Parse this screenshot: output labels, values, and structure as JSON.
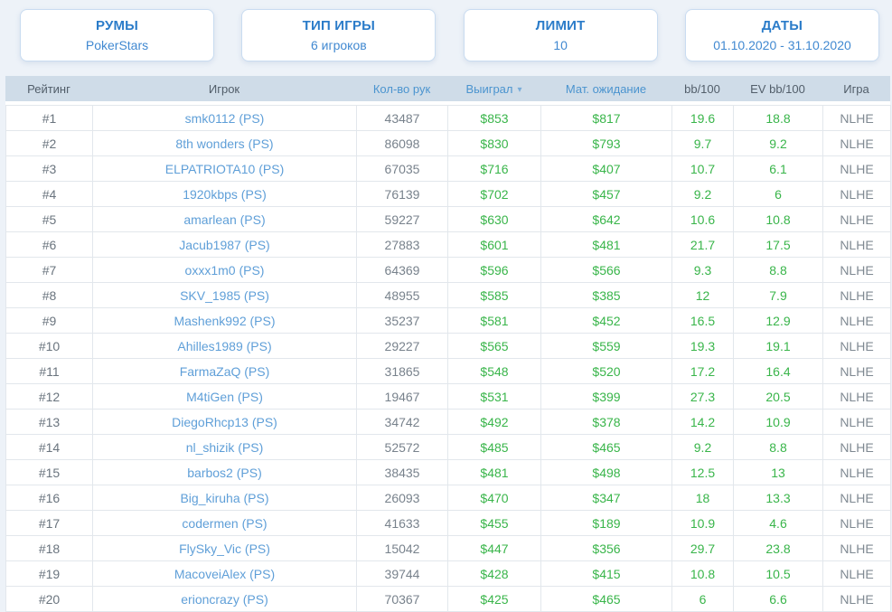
{
  "filters": {
    "rooms": {
      "title": "РУМЫ",
      "value": "PokerStars"
    },
    "game_type": {
      "title": "ТИП ИГРЫ",
      "value": "6 игроков"
    },
    "limit": {
      "title": "ЛИМИТ",
      "value": "10"
    },
    "dates": {
      "title": "ДАТЫ",
      "value": "01.10.2020 - 31.10.2020"
    }
  },
  "table": {
    "columns": [
      {
        "key": "rank",
        "label": "Рейтинг",
        "sortable": false
      },
      {
        "key": "player",
        "label": "Игрок",
        "sortable": false
      },
      {
        "key": "hands",
        "label": "Кол-во рук",
        "sortable": true
      },
      {
        "key": "won",
        "label": "Выиграл",
        "sortable": true,
        "sorted": "desc"
      },
      {
        "key": "ev",
        "label": "Мат. ожидание",
        "sortable": true
      },
      {
        "key": "bb100",
        "label": "bb/100",
        "sortable": false
      },
      {
        "key": "evbb100",
        "label": "EV bb/100",
        "sortable": false
      },
      {
        "key": "game",
        "label": "Игра",
        "sortable": false
      }
    ],
    "sort_icon": "▾",
    "rows": [
      [
        "#1",
        "smk0112 (PS)",
        "43487",
        "$853",
        "$817",
        "19.6",
        "18.8",
        "NLHE"
      ],
      [
        "#2",
        "8th wonders (PS)",
        "86098",
        "$830",
        "$793",
        "9.7",
        "9.2",
        "NLHE"
      ],
      [
        "#3",
        "ELPATRIOTA10 (PS)",
        "67035",
        "$716",
        "$407",
        "10.7",
        "6.1",
        "NLHE"
      ],
      [
        "#4",
        "1920kbps (PS)",
        "76139",
        "$702",
        "$457",
        "9.2",
        "6",
        "NLHE"
      ],
      [
        "#5",
        "amarlean (PS)",
        "59227",
        "$630",
        "$642",
        "10.6",
        "10.8",
        "NLHE"
      ],
      [
        "#6",
        "Jacub1987 (PS)",
        "27883",
        "$601",
        "$481",
        "21.7",
        "17.5",
        "NLHE"
      ],
      [
        "#7",
        "oxxx1m0 (PS)",
        "64369",
        "$596",
        "$566",
        "9.3",
        "8.8",
        "NLHE"
      ],
      [
        "#8",
        "SKV_1985 (PS)",
        "48955",
        "$585",
        "$385",
        "12",
        "7.9",
        "NLHE"
      ],
      [
        "#9",
        "Mashenk992 (PS)",
        "35237",
        "$581",
        "$452",
        "16.5",
        "12.9",
        "NLHE"
      ],
      [
        "#10",
        "Ahilles1989 (PS)",
        "29227",
        "$565",
        "$559",
        "19.3",
        "19.1",
        "NLHE"
      ],
      [
        "#11",
        "FarmaZaQ (PS)",
        "31865",
        "$548",
        "$520",
        "17.2",
        "16.4",
        "NLHE"
      ],
      [
        "#12",
        "M4tiGen (PS)",
        "19467",
        "$531",
        "$399",
        "27.3",
        "20.5",
        "NLHE"
      ],
      [
        "#13",
        "DiegoRhcp13 (PS)",
        "34742",
        "$492",
        "$378",
        "14.2",
        "10.9",
        "NLHE"
      ],
      [
        "#14",
        "nl_shizik (PS)",
        "52572",
        "$485",
        "$465",
        "9.2",
        "8.8",
        "NLHE"
      ],
      [
        "#15",
        "barbos2 (PS)",
        "38435",
        "$481",
        "$498",
        "12.5",
        "13",
        "NLHE"
      ],
      [
        "#16",
        "Big_kiruha (PS)",
        "26093",
        "$470",
        "$347",
        "18",
        "13.3",
        "NLHE"
      ],
      [
        "#17",
        "codermen (PS)",
        "41633",
        "$455",
        "$189",
        "10.9",
        "4.6",
        "NLHE"
      ],
      [
        "#18",
        "FlySky_Vic (PS)",
        "15042",
        "$447",
        "$356",
        "29.7",
        "23.8",
        "NLHE"
      ],
      [
        "#19",
        "MacoveiAlex (PS)",
        "39744",
        "$428",
        "$415",
        "10.8",
        "10.5",
        "NLHE"
      ],
      [
        "#20",
        "erioncrazy (PS)",
        "70367",
        "$425",
        "$465",
        "6",
        "6.6",
        "NLHE"
      ]
    ]
  },
  "colors": {
    "accent_blue": "#2b7cc9",
    "filter_value_blue": "#4189d1",
    "sortable_header_blue": "#4b94cf",
    "link_blue": "#5f9fd8",
    "positive_green": "#39b54a",
    "header_bg": "#cfdce8",
    "page_bg": "#edf2f8",
    "cell_border": "#e2e7ec",
    "header_text_dark": "#525e6a",
    "cell_text_gray": "#78828c"
  }
}
